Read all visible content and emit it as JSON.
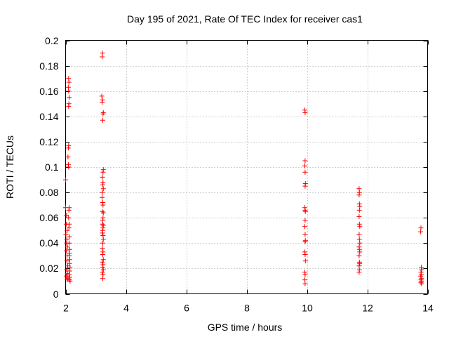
{
  "chart_data": {
    "type": "scatter",
    "title": "Day 195 of 2021, Rate Of TEC Index for receiver cas1",
    "xlabel": "GPS time / hours",
    "ylabel": "ROTI / TECUs",
    "xlim": [
      2,
      14
    ],
    "ylim": [
      0,
      0.2
    ],
    "xticks": [
      2,
      4,
      6,
      8,
      10,
      12,
      14
    ],
    "yticks": [
      0,
      0.02,
      0.04,
      0.06,
      0.08,
      0.1,
      0.12,
      0.14,
      0.16,
      0.18,
      0.2
    ],
    "xtick_labels": [
      "2",
      "4",
      "6",
      "8",
      "10",
      "12",
      "14"
    ],
    "ytick_labels": [
      "0",
      "0.02",
      "0.04",
      "0.06",
      "0.08",
      "0.1",
      "0.12",
      "0.14",
      "0.16",
      "0.18",
      "0.2"
    ],
    "grid": true,
    "marker": "plus",
    "color": "#ff0000",
    "series": [
      {
        "name": "cas1",
        "points": [
          [
            2.0,
            0.09
          ],
          [
            2.0,
            0.068
          ],
          [
            2.03,
            0.062
          ],
          [
            2.02,
            0.055
          ],
          [
            2.05,
            0.05
          ],
          [
            2.01,
            0.047
          ],
          [
            2.04,
            0.043
          ],
          [
            2.03,
            0.04
          ],
          [
            2.06,
            0.037
          ],
          [
            2.02,
            0.034
          ],
          [
            2.05,
            0.03
          ],
          [
            2.04,
            0.026
          ],
          [
            2.07,
            0.022
          ],
          [
            2.03,
            0.019
          ],
          [
            2.06,
            0.016
          ],
          [
            2.02,
            0.014
          ],
          [
            2.08,
            0.012
          ],
          [
            2.05,
            0.011
          ],
          [
            2.1,
            0.17
          ],
          [
            2.11,
            0.167
          ],
          [
            2.09,
            0.163
          ],
          [
            2.1,
            0.16
          ],
          [
            2.12,
            0.155
          ],
          [
            2.11,
            0.15
          ],
          [
            2.1,
            0.148
          ],
          [
            2.1,
            0.117
          ],
          [
            2.09,
            0.115
          ],
          [
            2.08,
            0.108
          ],
          [
            2.09,
            0.102
          ],
          [
            2.1,
            0.1
          ],
          [
            2.12,
            0.068
          ],
          [
            2.11,
            0.066
          ],
          [
            2.1,
            0.06
          ],
          [
            2.12,
            0.055
          ],
          [
            2.11,
            0.052
          ],
          [
            2.13,
            0.045
          ],
          [
            2.12,
            0.04
          ],
          [
            2.14,
            0.035
          ],
          [
            2.13,
            0.032
          ],
          [
            2.12,
            0.03
          ],
          [
            2.14,
            0.027
          ],
          [
            2.13,
            0.024
          ],
          [
            2.15,
            0.021
          ],
          [
            2.14,
            0.018
          ],
          [
            2.12,
            0.015
          ],
          [
            2.14,
            0.013
          ],
          [
            2.13,
            0.011
          ],
          [
            2.15,
            0.01
          ],
          [
            3.22,
            0.19
          ],
          [
            3.21,
            0.187
          ],
          [
            3.2,
            0.156
          ],
          [
            3.22,
            0.153
          ],
          [
            3.21,
            0.151
          ],
          [
            3.25,
            0.143
          ],
          [
            3.24,
            0.142
          ],
          [
            3.23,
            0.137
          ],
          [
            3.25,
            0.098
          ],
          [
            3.24,
            0.096
          ],
          [
            3.22,
            0.092
          ],
          [
            3.24,
            0.088
          ],
          [
            3.23,
            0.086
          ],
          [
            3.25,
            0.083
          ],
          [
            3.22,
            0.08
          ],
          [
            3.21,
            0.076
          ],
          [
            3.23,
            0.072
          ],
          [
            3.24,
            0.07
          ],
          [
            3.22,
            0.065
          ],
          [
            3.25,
            0.064
          ],
          [
            3.24,
            0.06
          ],
          [
            3.23,
            0.058
          ],
          [
            3.22,
            0.055
          ],
          [
            3.25,
            0.054
          ],
          [
            3.24,
            0.052
          ],
          [
            3.23,
            0.05
          ],
          [
            3.22,
            0.048
          ],
          [
            3.24,
            0.046
          ],
          [
            3.25,
            0.043
          ],
          [
            3.23,
            0.04
          ],
          [
            3.22,
            0.036
          ],
          [
            3.24,
            0.033
          ],
          [
            3.23,
            0.031
          ],
          [
            3.25,
            0.027
          ],
          [
            3.22,
            0.025
          ],
          [
            3.24,
            0.023
          ],
          [
            3.23,
            0.021
          ],
          [
            3.25,
            0.019
          ],
          [
            3.22,
            0.017
          ],
          [
            3.24,
            0.015
          ],
          [
            3.23,
            0.012
          ],
          [
            9.93,
            0.145
          ],
          [
            9.94,
            0.143
          ],
          [
            9.94,
            0.105
          ],
          [
            9.93,
            0.101
          ],
          [
            9.94,
            0.096
          ],
          [
            9.95,
            0.087
          ],
          [
            9.94,
            0.085
          ],
          [
            9.93,
            0.068
          ],
          [
            9.94,
            0.066
          ],
          [
            9.95,
            0.065
          ],
          [
            9.94,
            0.058
          ],
          [
            9.93,
            0.053
          ],
          [
            9.94,
            0.047
          ],
          [
            9.95,
            0.042
          ],
          [
            9.94,
            0.041
          ],
          [
            9.93,
            0.033
          ],
          [
            9.94,
            0.031
          ],
          [
            9.95,
            0.026
          ],
          [
            9.93,
            0.017
          ],
          [
            9.94,
            0.015
          ],
          [
            9.93,
            0.011
          ],
          [
            9.94,
            0.008
          ],
          [
            11.73,
            0.083
          ],
          [
            11.74,
            0.08
          ],
          [
            11.73,
            0.078
          ],
          [
            11.74,
            0.071
          ],
          [
            11.75,
            0.069
          ],
          [
            11.74,
            0.066
          ],
          [
            11.73,
            0.061
          ],
          [
            11.74,
            0.055
          ],
          [
            11.75,
            0.053
          ],
          [
            11.73,
            0.047
          ],
          [
            11.74,
            0.043
          ],
          [
            11.75,
            0.04
          ],
          [
            11.73,
            0.037
          ],
          [
            11.74,
            0.035
          ],
          [
            11.75,
            0.033
          ],
          [
            11.73,
            0.03
          ],
          [
            11.74,
            0.025
          ],
          [
            11.75,
            0.024
          ],
          [
            11.73,
            0.022
          ],
          [
            11.74,
            0.019
          ],
          [
            11.73,
            0.017
          ],
          [
            13.78,
            0.052
          ],
          [
            13.77,
            0.049
          ],
          [
            13.79,
            0.021
          ],
          [
            13.8,
            0.019
          ],
          [
            13.78,
            0.017
          ],
          [
            13.79,
            0.015
          ],
          [
            13.77,
            0.014
          ],
          [
            13.8,
            0.012
          ],
          [
            13.78,
            0.011
          ],
          [
            13.79,
            0.01
          ],
          [
            13.78,
            0.009
          ],
          [
            13.8,
            0.008
          ]
        ]
      }
    ]
  }
}
